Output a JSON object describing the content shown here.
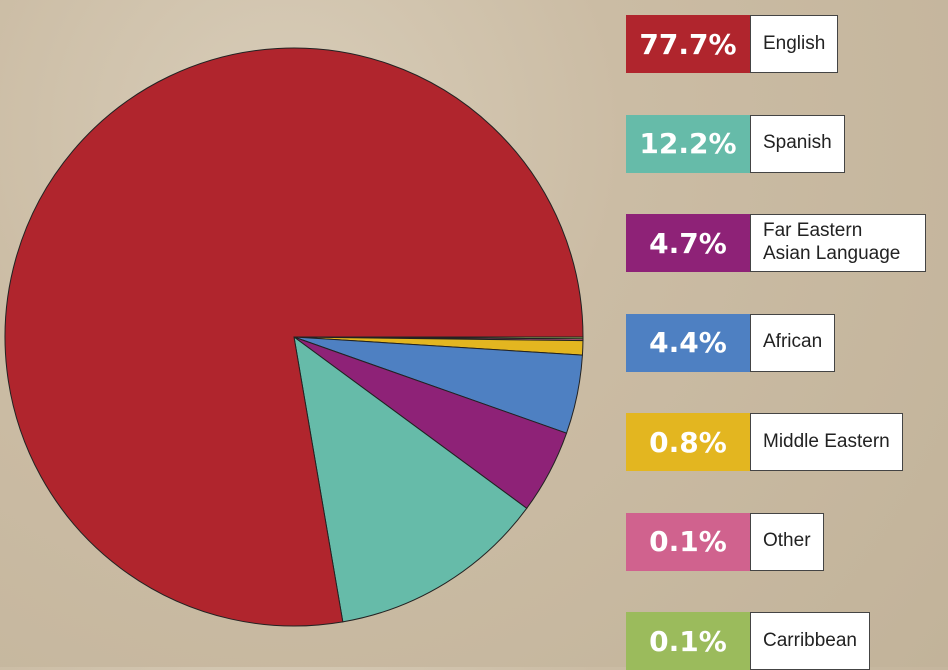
{
  "chart_data": {
    "type": "pie",
    "categories": [
      "English",
      "Spanish",
      "Far Eastern Asian Language",
      "African",
      "Middle Eastern",
      "Other",
      "Carribbean"
    ],
    "values": [
      77.7,
      12.2,
      4.7,
      4.4,
      0.8,
      0.1,
      0.1
    ],
    "value_labels": [
      "77.7%",
      "12.2%",
      "4.7%",
      "4.4%",
      "0.8%",
      "0.1%",
      "0.1%"
    ],
    "colors": [
      "#b0252d",
      "#66bba9",
      "#8e2277",
      "#4e80c2",
      "#e3b620",
      "#d0628e",
      "#9bbb5c"
    ]
  }
}
